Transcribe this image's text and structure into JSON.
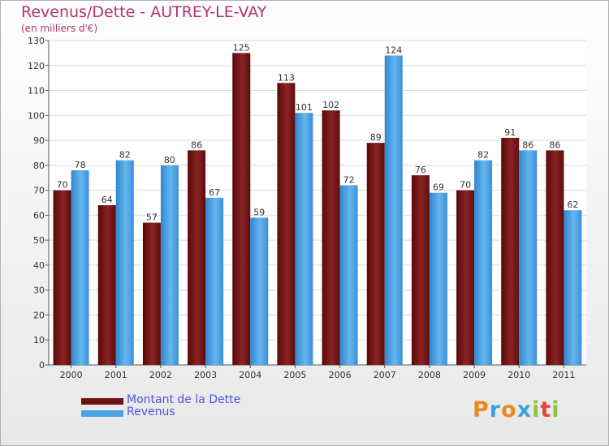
{
  "title": "Revenus/Dette - AUTREY-LE-VAY",
  "subtitle": "(en milliers d'€)",
  "logo": [
    "P",
    "r",
    "o",
    "x",
    "i",
    "t",
    "i"
  ],
  "colors": {
    "dette": "#6e1414",
    "revenus": "#4aa3e6",
    "title": "#b3326a",
    "legend_text": "#4d55e0"
  },
  "chart_data": {
    "type": "bar",
    "title": "Revenus/Dette - AUTREY-LE-VAY",
    "ylabel": "(en milliers d'€)",
    "categories": [
      "2000",
      "2001",
      "2002",
      "2003",
      "2004",
      "2005",
      "2006",
      "2007",
      "2008",
      "2009",
      "2010",
      "2011"
    ],
    "series": [
      {
        "name": "Montant de la Dette",
        "values": [
          70,
          64,
          57,
          86,
          125,
          113,
          102,
          89,
          76,
          70,
          91,
          86
        ]
      },
      {
        "name": "Revenus",
        "values": [
          78,
          82,
          80,
          67,
          59,
          101,
          72,
          124,
          69,
          82,
          86,
          62
        ]
      }
    ],
    "ylim": [
      0,
      130
    ],
    "yticks": [
      0,
      10,
      20,
      30,
      40,
      50,
      60,
      70,
      80,
      90,
      100,
      110,
      120,
      130
    ],
    "grid": true,
    "legend_position": "bottom-left"
  }
}
